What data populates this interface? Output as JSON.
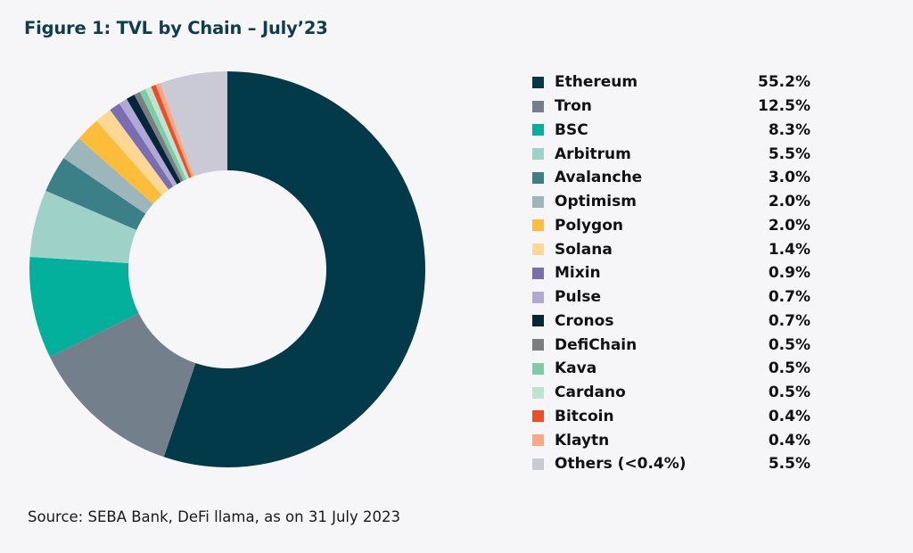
{
  "chart_data": {
    "type": "pie",
    "variant": "donut",
    "title": "Figure 1: TVL by Chain – July’23",
    "source": "Source: SEBA Bank, DeFi llama, as on 31 July 2023",
    "legend_position": "right",
    "start": "top",
    "direction": "clockwise",
    "unit": "%",
    "slices": [
      {
        "label": "Ethereum",
        "value": 55.2,
        "display": "55.2%",
        "color": "#033a4a"
      },
      {
        "label": "Tron",
        "value": 12.5,
        "display": "12.5%",
        "color": "#737f8a"
      },
      {
        "label": "BSC",
        "value": 8.3,
        "display": "8.3%",
        "color": "#03b09c"
      },
      {
        "label": "Arbitrum",
        "value": 5.5,
        "display": "5.5%",
        "color": "#9ed2c9"
      },
      {
        "label": "Avalanche",
        "value": 3.0,
        "display": "3.0%",
        "color": "#3b8086"
      },
      {
        "label": "Optimism",
        "value": 2.0,
        "display": "2.0%",
        "color": "#9db6bc"
      },
      {
        "label": "Polygon",
        "value": 2.0,
        "display": "2.0%",
        "color": "#fdbd3b"
      },
      {
        "label": "Solana",
        "value": 1.4,
        "display": "1.4%",
        "color": "#fed893"
      },
      {
        "label": "Mixin",
        "value": 0.9,
        "display": "0.9%",
        "color": "#7a6db0"
      },
      {
        "label": "Pulse",
        "value": 0.7,
        "display": "0.7%",
        "color": "#b1a8d6"
      },
      {
        "label": "Cronos",
        "value": 0.7,
        "display": "0.7%",
        "color": "#02263a"
      },
      {
        "label": "DefiChain",
        "value": 0.5,
        "display": "0.5%",
        "color": "#7b7d80"
      },
      {
        "label": "Kava",
        "value": 0.5,
        "display": "0.5%",
        "color": "#7fcaa7"
      },
      {
        "label": "Cardano",
        "value": 0.5,
        "display": "0.5%",
        "color": "#bde3d1"
      },
      {
        "label": "Bitcoin",
        "value": 0.4,
        "display": "0.4%",
        "color": "#f04d25"
      },
      {
        "label": "Klaytn",
        "value": 0.4,
        "display": "0.4%",
        "color": "#fba784"
      },
      {
        "label": "Others (<0.4%)",
        "value": 5.5,
        "display": "5.5%",
        "color": "#c9cad5"
      }
    ]
  }
}
